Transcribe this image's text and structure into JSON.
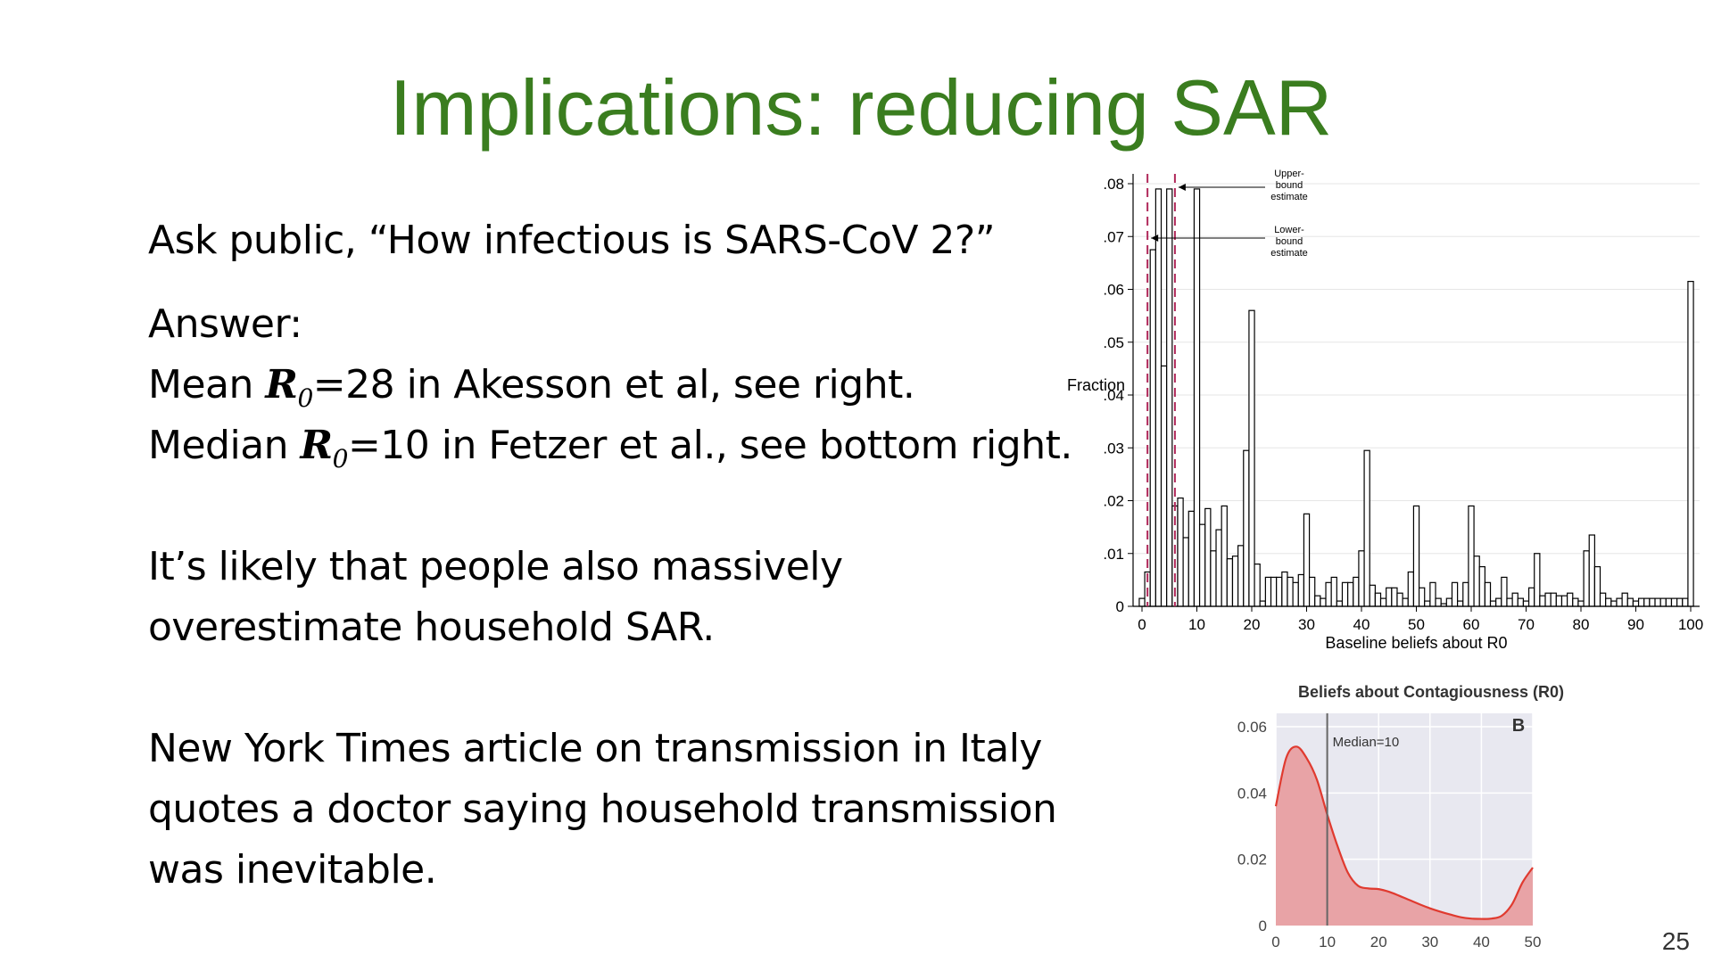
{
  "slide": {
    "title": "Implications: reducing SAR",
    "question": "Ask public, “How infectious is SARS-CoV 2?”",
    "answer_label": "Answer:",
    "mean_prefix": "Mean ",
    "mean_suffix": "=28 in Akesson et al, see right.",
    "median_prefix": "Median ",
    "median_suffix": "=10 in Fetzer et al., see bottom right.",
    "r_symbol": "R",
    "r_subscript": "0",
    "para2_line1": "It’s likely that people also massively",
    "para2_line2": "overestimate household SAR.",
    "para3_line1": "New York Times article on transmission in Italy",
    "para3_line2": "quotes a doctor saying household transmission",
    "para3_line3": "was inevitable.",
    "page_number": "25"
  },
  "chart_data": [
    {
      "type": "bar",
      "title": "",
      "xlabel": "Baseline beliefs about R0",
      "ylabel": "Fraction",
      "xlim": [
        0,
        100
      ],
      "ylim": [
        0,
        0.08
      ],
      "x_ticks": [
        0,
        10,
        20,
        30,
        40,
        50,
        60,
        70,
        80,
        90,
        100
      ],
      "x_tick_labels": [
        "0",
        "10",
        "20",
        "30",
        "40",
        "50",
        "60",
        "70",
        "80",
        "90",
        "100"
      ],
      "y_ticks": [
        0,
        0.01,
        0.02,
        0.03,
        0.04,
        0.05,
        0.06,
        0.07,
        0.08
      ],
      "y_tick_labels": [
        "0",
        ".01",
        ".02",
        ".03",
        ".04",
        ".05",
        ".06",
        ".07",
        ".08"
      ],
      "grid": true,
      "bin_width": 1,
      "x": [
        0,
        1,
        2,
        3,
        4,
        5,
        6,
        7,
        8,
        9,
        10,
        11,
        12,
        13,
        14,
        15,
        16,
        17,
        18,
        19,
        20,
        21,
        22,
        23,
        24,
        25,
        26,
        27,
        28,
        29,
        30,
        31,
        32,
        33,
        34,
        35,
        36,
        37,
        38,
        39,
        40,
        41,
        42,
        43,
        44,
        45,
        46,
        47,
        48,
        49,
        50,
        51,
        52,
        53,
        54,
        55,
        56,
        57,
        58,
        59,
        60,
        61,
        62,
        63,
        64,
        65,
        66,
        67,
        68,
        69,
        70,
        71,
        72,
        73,
        74,
        75,
        76,
        77,
        78,
        79,
        80,
        81,
        82,
        83,
        84,
        85,
        86,
        87,
        88,
        89,
        90,
        91,
        92,
        93,
        94,
        95,
        96,
        97,
        98,
        99,
        100
      ],
      "values": [
        0.0015,
        0.0065,
        0.0675,
        0.079,
        0.0455,
        0.079,
        0.019,
        0.0205,
        0.013,
        0.018,
        0.079,
        0.0155,
        0.0185,
        0.0105,
        0.0145,
        0.019,
        0.009,
        0.0095,
        0.0115,
        0.0295,
        0.056,
        0.008,
        0.001,
        0.0055,
        0.0055,
        0.0055,
        0.0065,
        0.0055,
        0.0045,
        0.006,
        0.0175,
        0.0055,
        0.002,
        0.0015,
        0.0045,
        0.0055,
        0.001,
        0.0045,
        0.0045,
        0.0055,
        0.0105,
        0.0295,
        0.004,
        0.0025,
        0.0015,
        0.0035,
        0.0035,
        0.0025,
        0.0015,
        0.0065,
        0.019,
        0.0035,
        0.001,
        0.0045,
        0.0015,
        0.0005,
        0.0015,
        0.0045,
        0.001,
        0.0045,
        0.019,
        0.0095,
        0.0075,
        0.0045,
        0.001,
        0.0015,
        0.0055,
        0.0015,
        0.0025,
        0.0015,
        0.001,
        0.0035,
        0.01,
        0.002,
        0.0025,
        0.0025,
        0.002,
        0.002,
        0.0025,
        0.0015,
        0.001,
        0.0105,
        0.0135,
        0.0075,
        0.0025,
        0.0015,
        0.001,
        0.0015,
        0.0025,
        0.0015,
        0.001,
        0.0015,
        0.0015,
        0.0015,
        0.0015,
        0.0015,
        0.0015,
        0.0015,
        0.0015,
        0.0015,
        0.0615
      ],
      "annotations": [
        {
          "text": [
            "Upper-",
            "bound",
            "estimate"
          ],
          "x": 6
        },
        {
          "text": [
            "Lower-",
            "bound",
            "estimate"
          ],
          "x": 1
        }
      ]
    },
    {
      "type": "area",
      "title": "Beliefs about Contagiousness (R0)",
      "panel_label": "B",
      "xlim": [
        0,
        50
      ],
      "ylim": [
        0,
        0.06
      ],
      "x_ticks": [
        0,
        10,
        20,
        30,
        40,
        50
      ],
      "x_tick_labels": [
        "0",
        "10",
        "20",
        "30",
        "40",
        "50"
      ],
      "y_ticks": [
        0,
        0.02,
        0.04,
        0.06
      ],
      "y_tick_labels": [
        "0",
        "0.02",
        "0.04",
        "0.06"
      ],
      "grid": true,
      "colors": {
        "line": "#e03a2f",
        "fill": "#e8a3a6",
        "background": "#e8e8f0",
        "median_line": "#666666"
      },
      "median": 10,
      "median_label": "Median=10",
      "x": [
        0,
        2,
        4,
        6,
        8,
        10,
        12,
        14,
        16,
        18,
        20,
        22,
        24,
        26,
        28,
        30,
        32,
        34,
        36,
        38,
        40,
        42,
        44,
        46,
        48,
        50
      ],
      "values": [
        0.036,
        0.0505,
        0.054,
        0.0505,
        0.044,
        0.0335,
        0.024,
        0.016,
        0.012,
        0.0112,
        0.011,
        0.0102,
        0.009,
        0.0077,
        0.0064,
        0.0052,
        0.0042,
        0.0033,
        0.0025,
        0.0021,
        0.002,
        0.0021,
        0.003,
        0.0065,
        0.013,
        0.0175
      ]
    }
  ]
}
